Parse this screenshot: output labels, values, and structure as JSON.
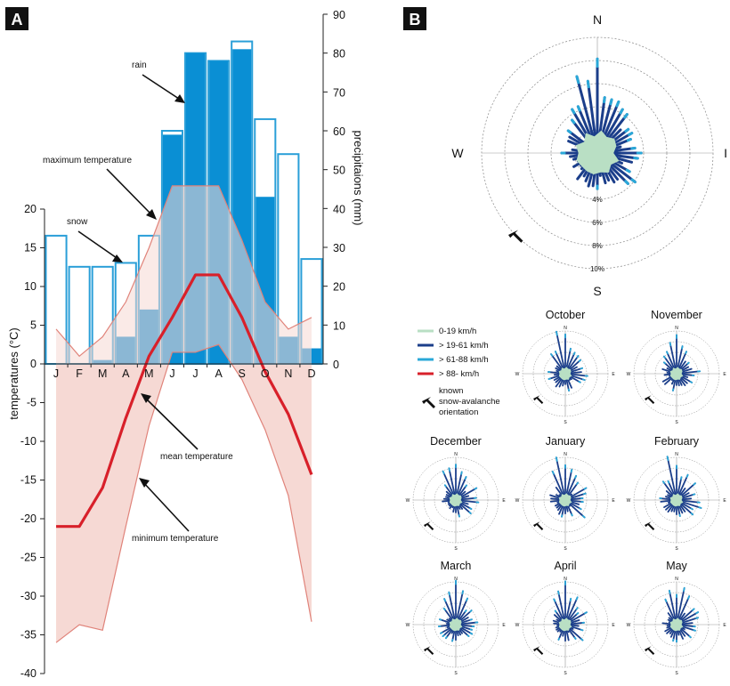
{
  "panel_a": {
    "tag": "A"
  },
  "panel_b": {
    "tag": "B"
  },
  "chart_data": [
    {
      "type": "bar",
      "categories": [
        "J",
        "F",
        "M",
        "A",
        "M",
        "J",
        "J",
        "A",
        "S",
        "O",
        "N",
        "D"
      ],
      "xlabel": "",
      "ylabel_left": "temperatures (°C)",
      "ylabel_right": "precipitaions (mm)",
      "ylim_left": [
        -40,
        20
      ],
      "ylim_right": [
        0,
        90
      ],
      "left_ticks": [
        "20",
        "15",
        "10",
        "5",
        "0",
        "-5",
        "-10",
        "-15",
        "-20",
        "-25",
        "-30",
        "-35",
        "-40"
      ],
      "right_ticks": [
        "90",
        "80",
        "70",
        "60",
        "50",
        "40",
        "30",
        "20",
        "10",
        "0"
      ],
      "series": [
        {
          "name": "rain",
          "axis": "right",
          "kind": "bar",
          "values": [
            0,
            0,
            1,
            7,
            14,
            59,
            80,
            78,
            81,
            43,
            7,
            4
          ],
          "color": "#0a8fd4"
        },
        {
          "name": "snow",
          "axis": "right",
          "kind": "bar",
          "values": [
            33,
            25,
            25,
            26,
            33,
            60,
            80,
            78,
            83,
            63,
            54,
            27
          ],
          "color": "#2a9fd8"
        },
        {
          "name": "maximum temperature",
          "axis": "left",
          "kind": "line",
          "values": [
            4.5,
            1,
            3.5,
            8,
            15,
            23,
            23,
            23,
            16,
            8,
            4.5,
            6
          ],
          "color": "#e0837a"
        },
        {
          "name": "mean temperature",
          "axis": "left",
          "kind": "line",
          "values": [
            -21,
            -21,
            -16,
            -7,
            1,
            6,
            11.5,
            11.5,
            6,
            -1,
            -6.5,
            -14.3
          ],
          "color": "#d8202a"
        },
        {
          "name": "minimum temperature",
          "axis": "left",
          "kind": "line",
          "values": [
            -36,
            -33.7,
            -34.4,
            -21,
            -8,
            1.5,
            1.5,
            2.5,
            -2,
            -8.5,
            -17,
            -33.3
          ],
          "color": "#e0837a"
        }
      ],
      "annotations": [
        "rain",
        "maximum temperature",
        "snow",
        "mean temperature",
        "minimum temperature"
      ]
    },
    {
      "type": "rose",
      "title": "",
      "directions": [
        "N",
        "E",
        "S",
        "W"
      ],
      "visible_direction_labels": {
        "N": "N",
        "E": "I",
        "S": "S",
        "W": "W"
      },
      "rings_percent": [
        "4%",
        "6%",
        "8%",
        "10%"
      ],
      "bins": [
        "0-19 km/h",
        "> 19-61 km/h",
        "> 61-88 km/h",
        "> 88- km/h"
      ],
      "bin_colors": [
        "#b9dfc4",
        "#1b3e8a",
        "#2aa8d8",
        "#d8202a"
      ],
      "avalanche_orientation": "SW",
      "month_roses": [
        {
          "month": "October"
        },
        {
          "month": "November"
        },
        {
          "month": "December"
        },
        {
          "month": "January"
        },
        {
          "month": "February"
        },
        {
          "month": "March"
        },
        {
          "month": "April"
        },
        {
          "month": "May"
        }
      ],
      "mini_direction_labels": {
        "N": "N",
        "E": "E",
        "S": "S",
        "W": "W"
      }
    }
  ],
  "legend": {
    "items": [
      {
        "label": "0-19 km/h",
        "color": "#b9dfc4"
      },
      {
        "label": "> 19-61 km/h",
        "color": "#1b3e8a"
      },
      {
        "label": "> 61-88 km/h",
        "color": "#2aa8d8"
      },
      {
        "label": "> 88- km/h",
        "color": "#d8202a"
      }
    ],
    "arrow_label_line1": "known",
    "arrow_label_line2": "snow-avalanche",
    "arrow_label_line3": "orientation"
  }
}
